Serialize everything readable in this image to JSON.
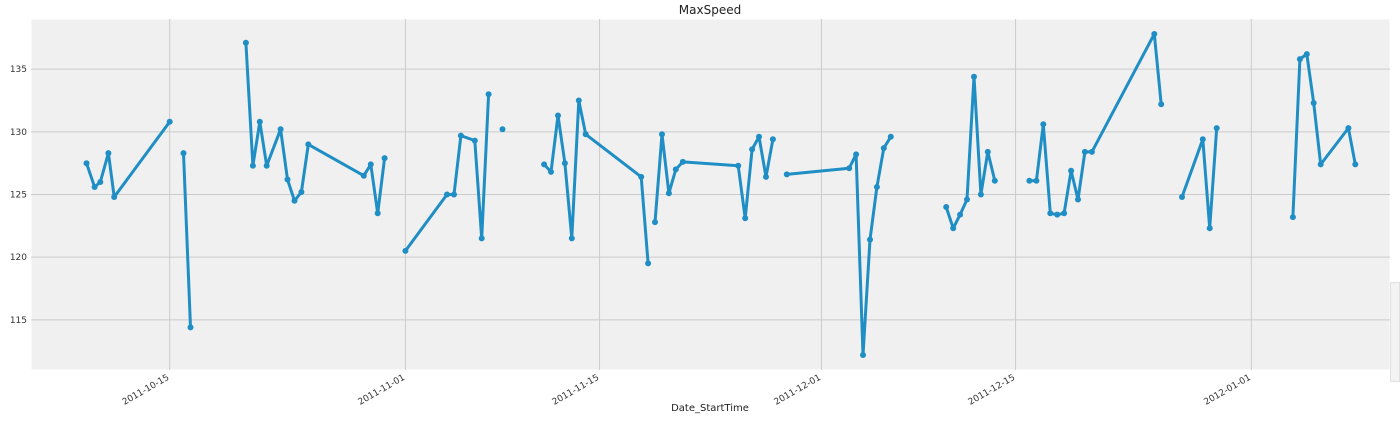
{
  "chart_data": {
    "type": "line",
    "title": "MaxSpeed",
    "xlabel": "Date_StartTime",
    "ylabel": "",
    "x_type": "date",
    "xlim": [
      "2011-10-05",
      "2012-01-11"
    ],
    "ylim": [
      111,
      139
    ],
    "yticks": [
      115,
      120,
      125,
      130,
      135
    ],
    "xticks": [
      "2011-10-15",
      "2011-11-01",
      "2011-11-15",
      "2011-12-01",
      "2011-12-15",
      "2012-01-01"
    ],
    "grid": true,
    "color": "#1f8ec4",
    "segments": [
      {
        "x": [
          "2011-10-09",
          "2011-10-09 14:00",
          "2011-10-10",
          "2011-10-10 14:00",
          "2011-10-11",
          "2011-10-15"
        ],
        "y": [
          127.5,
          125.6,
          126.0,
          128.3,
          124.8,
          130.8
        ]
      },
      {
        "x": [
          "2011-10-16",
          "2011-10-16 12:00"
        ],
        "y": [
          128.3,
          114.4
        ]
      },
      {
        "x": [
          "2011-10-20 12:00",
          "2011-10-21",
          "2011-10-21 12:00",
          "2011-10-22",
          "2011-10-23",
          "2011-10-23 12:00",
          "2011-10-24",
          "2011-10-24 12:00",
          "2011-10-25",
          "2011-10-29",
          "2011-10-29 12:00",
          "2011-10-30",
          "2011-10-30 12:00"
        ],
        "y": [
          137.1,
          127.3,
          130.8,
          127.3,
          130.2,
          126.2,
          124.5,
          125.2,
          129.0,
          126.5,
          127.4,
          123.5,
          127.9
        ]
      },
      {
        "x": [
          "2011-11-01",
          "2011-11-04",
          "2011-11-04 12:00",
          "2011-11-05",
          "2011-11-06",
          "2011-11-06 12:00",
          "2011-11-07"
        ],
        "y": [
          120.5,
          125.0,
          125.0,
          129.7,
          129.3,
          121.5,
          133.0
        ]
      },
      {
        "x": [
          "2011-11-08"
        ],
        "y": [
          130.2
        ]
      },
      {
        "x": [
          "2011-11-11",
          "2011-11-11 12:00",
          "2011-11-12",
          "2011-11-12 12:00",
          "2011-11-13",
          "2011-11-13 12:00",
          "2011-11-14",
          "2011-11-18",
          "2011-11-18 12:00"
        ],
        "y": [
          127.4,
          126.8,
          131.3,
          127.5,
          121.5,
          132.5,
          129.8,
          126.4,
          119.5
        ]
      },
      {
        "x": [
          "2011-11-19",
          "2011-11-19 12:00",
          "2011-11-20",
          "2011-11-20 12:00",
          "2011-11-21",
          "2011-11-25",
          "2011-11-25 12:00",
          "2011-11-26",
          "2011-11-26 12:00",
          "2011-11-27",
          "2011-11-27 12:00"
        ],
        "y": [
          122.8,
          129.8,
          125.1,
          127.0,
          127.6,
          127.3,
          123.1,
          128.6,
          129.6,
          126.4,
          129.4
        ]
      },
      {
        "x": [
          "2011-11-28 12:00",
          "2011-12-03",
          "2011-12-03 12:00",
          "2011-12-04",
          "2011-12-04 12:00",
          "2011-12-05",
          "2011-12-05 12:00",
          "2011-12-06"
        ],
        "y": [
          126.6,
          127.1,
          128.2,
          112.2,
          121.4,
          125.6,
          128.7,
          129.6
        ]
      },
      {
        "x": [
          "2011-12-10",
          "2011-12-10 12:00",
          "2011-12-11",
          "2011-12-11 12:00",
          "2011-12-12",
          "2011-12-12 12:00",
          "2011-12-13",
          "2011-12-13 12:00"
        ],
        "y": [
          124.0,
          122.3,
          123.4,
          124.6,
          134.4,
          125.0,
          128.4,
          126.1
        ]
      },
      {
        "x": [
          "2011-12-16",
          "2011-12-16 12:00",
          "2011-12-17",
          "2011-12-17 12:00",
          "2011-12-18",
          "2011-12-18 12:00",
          "2011-12-19",
          "2011-12-19 12:00",
          "2011-12-20",
          "2011-12-20 12:00",
          "2011-12-25",
          "2011-12-25 12:00"
        ],
        "y": [
          126.1,
          126.1,
          130.6,
          123.5,
          123.4,
          123.5,
          126.9,
          124.6,
          128.4,
          128.4,
          137.8,
          132.2
        ]
      },
      {
        "x": [
          "2011-12-27",
          "2011-12-28 12:00",
          "2011-12-29",
          "2011-12-29 12:00"
        ],
        "y": [
          124.8,
          129.4,
          122.3,
          130.3
        ]
      },
      {
        "x": [
          "2012-01-04",
          "2012-01-04 12:00",
          "2012-01-05",
          "2012-01-05 12:00",
          "2012-01-06",
          "2012-01-08",
          "2012-01-08 12:00"
        ],
        "y": [
          123.2,
          135.8,
          136.2,
          132.3,
          127.4,
          130.3,
          127.4
        ]
      }
    ]
  }
}
